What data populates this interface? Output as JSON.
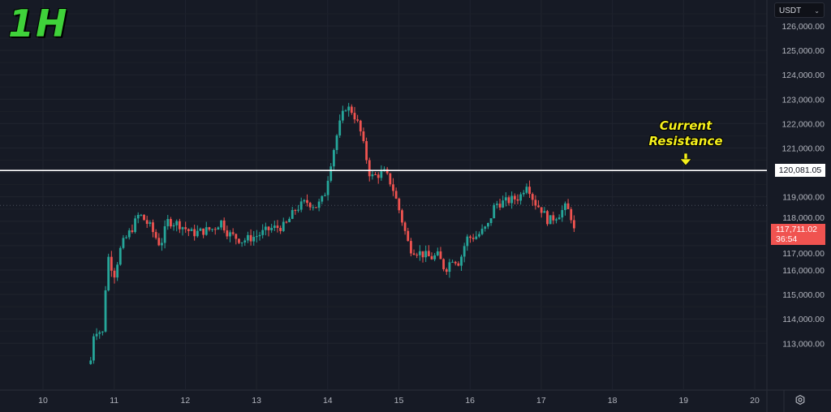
{
  "timeframe_label": "1H",
  "currency_selector": {
    "value": "USDT",
    "icon": "chevron-down-icon"
  },
  "annotation": {
    "line1": "Current",
    "line2": "Resistance",
    "icon": "arrow-down-icon",
    "color": "#f5f01c"
  },
  "resistance_label": "120,081.05",
  "current_price": {
    "value": "117,711.02",
    "countdown": "36:54",
    "color": "#f05350"
  },
  "settings_icon": "gear-icon",
  "chart_data": {
    "type": "candlestick",
    "interval": "1h",
    "x_unit": "day of month",
    "xlim": [
      9.65,
      20.95
    ],
    "ylim": [
      112250,
      126380
    ],
    "x_ticks": [
      "10",
      "11",
      "12",
      "13",
      "14",
      "15",
      "16",
      "17",
      "18",
      "19",
      "20"
    ],
    "y_ticks": [
      "126,000.00",
      "125,000.00",
      "124,000.00",
      "123,000.00",
      "122,000.00",
      "121,000.00",
      "119,000.00",
      "118,000.00",
      "117,000.00",
      "116,000.00",
      "115,000.00",
      "114,000.00",
      "113,000.00"
    ],
    "resistance_level": 120081.05,
    "last_price": 117711.02,
    "dotted_level": 118650,
    "grid": true,
    "up_color": "#26a69a",
    "down_color": "#ef5350",
    "price_path": {
      "x": [
        10.67,
        10.72,
        10.85,
        10.9,
        11.0,
        11.1,
        11.25,
        11.35,
        11.5,
        11.65,
        11.75,
        11.9,
        12.1,
        12.4,
        12.5,
        12.6,
        12.8,
        12.9,
        13.0,
        13.2,
        13.4,
        13.55,
        13.7,
        13.85,
        13.95,
        14.05,
        14.15,
        14.25,
        14.35,
        14.45,
        14.55,
        14.6,
        14.8,
        14.9,
        15.0,
        15.15,
        15.3,
        15.45,
        15.55,
        15.65,
        15.75,
        15.85,
        15.95,
        16.1,
        16.25,
        16.35,
        16.5,
        16.7,
        16.8,
        16.9,
        17.0,
        17.1,
        17.25,
        17.35,
        17.5
      ],
      "y": [
        112300,
        113600,
        113400,
        116700,
        115800,
        117000,
        117700,
        118300,
        117800,
        117000,
        118000,
        117900,
        117500,
        117700,
        118000,
        117500,
        117200,
        117300,
        117400,
        117700,
        117800,
        118500,
        118800,
        118600,
        119000,
        120500,
        121800,
        122700,
        122500,
        121800,
        120500,
        119800,
        120000,
        119500,
        118500,
        116900,
        116700,
        116500,
        116600,
        116000,
        116500,
        116300,
        117300,
        117400,
        117800,
        118700,
        118800,
        119000,
        119600,
        118800,
        118500,
        118000,
        118300,
        118600,
        117711
      ]
    }
  }
}
